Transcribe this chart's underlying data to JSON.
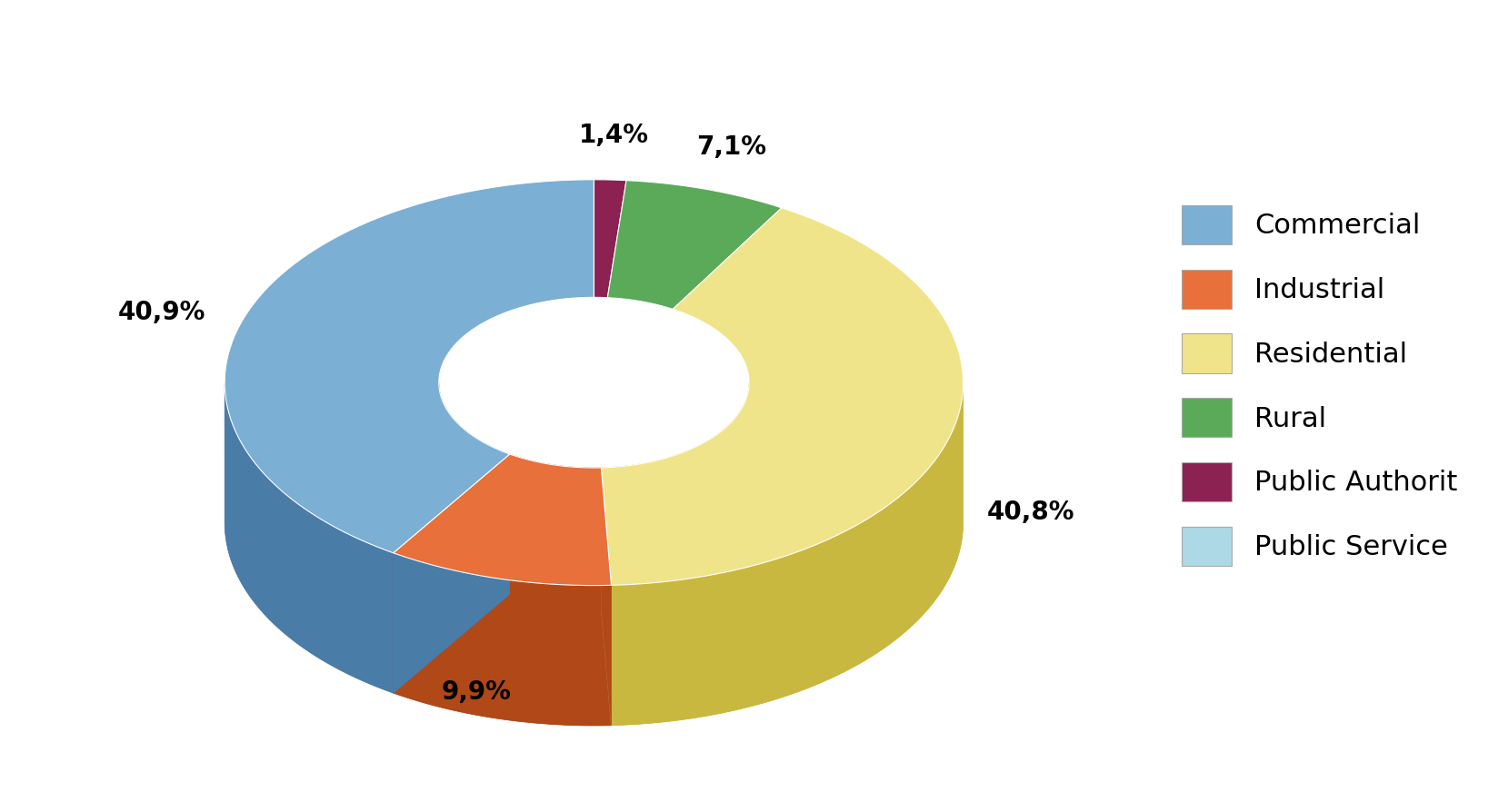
{
  "labels": [
    "Commercial",
    "Industrial",
    "Residential",
    "Rural",
    "Public Authorit",
    "Public Service"
  ],
  "values": [
    40.9,
    9.9,
    40.8,
    7.1,
    1.4,
    0.0
  ],
  "display_pcts": [
    "40,9%",
    "9,9%",
    "40,8%",
    "7,1%",
    "1,4%",
    ""
  ],
  "colors_face": [
    "#7bafd4",
    "#e8703a",
    "#f0e48a",
    "#5aaa5a",
    "#8b2252",
    "#add8e6"
  ],
  "colors_side": [
    "#4a7ca8",
    "#b04818",
    "#c8b840",
    "#3a7a3a",
    "#5a0030",
    "#7ab0d0"
  ],
  "legend_labels": [
    "Commercial",
    "Industrial",
    "Residential",
    "Rural",
    "Public Authorit",
    "Public Service"
  ],
  "legend_colors": [
    "#7bafd4",
    "#e8703a",
    "#f0e48a",
    "#5aaa5a",
    "#8b2252",
    "#add8e6"
  ],
  "figsize": [
    16.59,
    8.83
  ],
  "dpi": 100,
  "label_fontsize": 20,
  "legend_fontsize": 22,
  "plot_order": [
    4,
    3,
    2,
    1,
    0,
    5
  ],
  "startangle": 90,
  "R_outer": 1.0,
  "R_inner": 0.42,
  "depth": 0.38,
  "tilt": 0.55
}
